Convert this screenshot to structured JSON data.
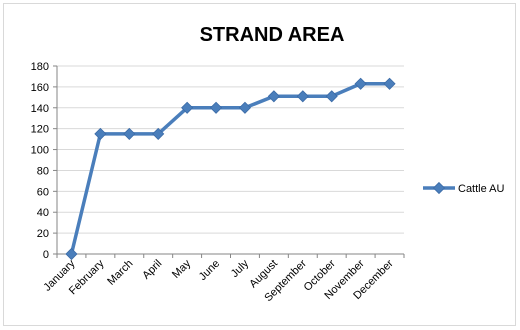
{
  "chart_data": {
    "type": "line",
    "title": "STRAND AREA",
    "xlabel": "",
    "ylabel": "",
    "categories": [
      "January",
      "February",
      "March",
      "April",
      "May",
      "June",
      "July",
      "August",
      "September",
      "October",
      "November",
      "December"
    ],
    "series": [
      {
        "name": "Cattle AU",
        "values": [
          0,
          115,
          115,
          115,
          140,
          140,
          140,
          151,
          151,
          151,
          163,
          163
        ],
        "color": "#4a7ebb",
        "marker": "diamond"
      }
    ],
    "ylim": [
      0,
      180
    ],
    "yticks": [
      0,
      20,
      40,
      60,
      80,
      100,
      120,
      140,
      160,
      180
    ],
    "grid": true,
    "legend": "right",
    "gridColor": "#d9d9d9",
    "axisColor": "#868686"
  }
}
